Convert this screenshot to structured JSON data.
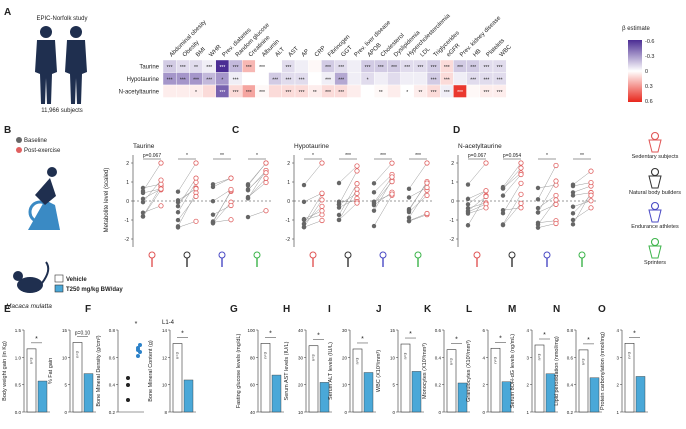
{
  "panel_letters": [
    "A",
    "B",
    "C",
    "D",
    "E",
    "F",
    "G",
    "H",
    "I",
    "J",
    "K",
    "L",
    "M",
    "N",
    "O"
  ],
  "panelA": {
    "study": "EPIC-Norfolk study",
    "subjects": "11,966 subjects",
    "columns": [
      "Abdominal obesity",
      "Obesity",
      "BMI",
      "WHR",
      "Prev. diabetes",
      "Random glucose",
      "Creatinine",
      "Albumin",
      "ALT",
      "AST",
      "AP",
      "CRP",
      "Fibrinogen",
      "GGT",
      "Prev. liver disease",
      "APOB",
      "Cholesterol",
      "Dyslipidemia",
      "Hypercholesterolemia",
      "LDL",
      "Triglycerides",
      "eGFR",
      "Prev. kidney disease",
      "HB",
      "Platelets",
      "WBC"
    ],
    "rows": [
      {
        "label": "Taurine",
        "values": [
          -0.15,
          -0.1,
          -0.1,
          -0.05,
          -0.6,
          -0.2,
          0.2,
          0,
          0,
          -0.1,
          -0.05,
          0.02,
          -0.15,
          -0.1,
          -0.05,
          -0.15,
          -0.15,
          -0.15,
          -0.1,
          -0.1,
          -0.15,
          0.1,
          -0.15,
          -0.15,
          -0.1,
          -0.1
        ],
        "stars": [
          "***",
          "***",
          "**",
          "***",
          "***",
          "***",
          "***",
          "***",
          "",
          "***",
          "",
          "",
          "***",
          "***",
          "",
          "***",
          "***",
          "***",
          "***",
          "***",
          "***",
          "***",
          "***",
          "***",
          "***",
          "***"
        ]
      },
      {
        "label": "Hypotaurine",
        "values": [
          -0.3,
          -0.3,
          -0.3,
          -0.2,
          -0.3,
          -0.05,
          0,
          0,
          -0.15,
          -0.1,
          -0.1,
          0,
          -0.05,
          -0.25,
          -0.05,
          -0.1,
          -0.05,
          -0.1,
          -0.05,
          -0.05,
          -0.15,
          0.1,
          -0.05,
          -0.1,
          -0.1,
          -0.1
        ],
        "stars": [
          "***",
          "***",
          "***",
          "***",
          "*",
          "***",
          "",
          "",
          "***",
          "***",
          "***",
          "",
          "***",
          "***",
          "",
          "*",
          "",
          "",
          "",
          "",
          "***",
          "***",
          "",
          "***",
          "***",
          "***"
        ]
      },
      {
        "label": "N-acetyltaurine",
        "values": [
          0.05,
          0.05,
          0.05,
          0.1,
          -0.45,
          0.1,
          0.25,
          0.02,
          0.1,
          0.1,
          0.1,
          0.05,
          0.1,
          0.1,
          0.05,
          0,
          0.02,
          0.05,
          0,
          0.05,
          0.1,
          -0.05,
          0.55,
          0.02,
          0.05,
          0.05
        ],
        "stars": [
          "",
          "",
          "*",
          "",
          "***",
          "***",
          "***",
          "***",
          "",
          "***",
          "***",
          "**",
          "***",
          "***",
          "",
          "",
          "**",
          "",
          "*",
          "**",
          "***",
          "***",
          "***",
          "",
          "***",
          "***"
        ]
      }
    ],
    "legend_title": "β estimate",
    "legend_ticks": [
      "-0.6",
      "-0.3",
      "0",
      "0.3",
      "0.6"
    ]
  },
  "panelB": {
    "title": "Taurine",
    "ylabel": "Metabolite level (scaled)",
    "legend": [
      "Baseline",
      "Post-exercise"
    ],
    "pvals": [
      "p=0.067",
      "*",
      "**",
      "*"
    ]
  },
  "panelC": {
    "title": "Hypotaurine",
    "pvals": [
      "*",
      "***",
      "***",
      "***"
    ]
  },
  "panelD": {
    "title": "N-acetyltaurine",
    "pvals": [
      "p=0.067",
      "p=0.054",
      "*",
      "**"
    ]
  },
  "y_ticks_BCD": [
    "2",
    "1",
    "0",
    "-1",
    "-2"
  ],
  "athletes": [
    "Sedentary subjects",
    "Natural body builders",
    "Endurance athletes",
    "Sprinters"
  ],
  "monkey": {
    "species": "Macaca mulatta",
    "legend": [
      "Vehicle",
      "T250 mg/kg BW/day"
    ]
  },
  "panelsEO": [
    {
      "id": "E1",
      "ylabel": "Body weight gain (in Kg)",
      "ticks": [
        "1.5",
        "1.0",
        "0.5",
        "0.0"
      ],
      "sig": "*",
      "n": "n=3"
    },
    {
      "id": "E2",
      "ylabel": "% Fat gain",
      "ticks": [
        "15",
        "10",
        "5",
        "0"
      ],
      "sig": "p=0.10",
      "n": "n=3"
    },
    {
      "id": "F1",
      "ylabel": "Bone Mineral Density (g/cm²)",
      "ticks": [
        "0.8",
        "0.6",
        "0.4",
        "0.2"
      ],
      "sig": "*",
      "n": ""
    },
    {
      "id": "F2",
      "ylabel": "Bone Mineral Content (g)",
      "ticks": [
        "14",
        "12",
        "10",
        "8"
      ],
      "sig": "*",
      "n": "n=3",
      "title": "L1-4"
    },
    {
      "id": "G",
      "ylabel": "Fasting glucose levels (mg/dL)",
      "ticks": [
        "100",
        "80",
        "60",
        "40"
      ],
      "sig": "*",
      "n": "n=3"
    },
    {
      "id": "H",
      "ylabel": "Serum AST levels (IU/L)",
      "ticks": [
        "40",
        "30",
        "20",
        "10"
      ],
      "sig": "*",
      "n": "n=3"
    },
    {
      "id": "I",
      "ylabel": "Serum ALT levels (IU/L)",
      "ticks": [
        "30",
        "20",
        "10",
        "0"
      ],
      "sig": "*",
      "n": "n=3"
    },
    {
      "id": "J",
      "ylabel": "WBC (X10³/mm³)",
      "ticks": [
        "15",
        "10",
        "5",
        "0"
      ],
      "sig": "*",
      "n": "n=3"
    },
    {
      "id": "K",
      "ylabel": "Monocytes (X10³/mm³)",
      "ticks": [
        "0.6",
        "0.4",
        "0.2",
        "0"
      ],
      "sig": "*",
      "n": "n=3"
    },
    {
      "id": "L",
      "ylabel": "Granulocytes (X10³/mm³)",
      "ticks": [
        "6",
        "4",
        "2",
        "0"
      ],
      "sig": "*",
      "n": "n=3"
    },
    {
      "id": "M",
      "ylabel": "Serum 8OH-dG levels (ng/mL)",
      "ticks": [
        "4",
        "3",
        "2",
        "1"
      ],
      "sig": "*",
      "n": "n=3"
    },
    {
      "id": "N",
      "ylabel": "Lipid peroxidation (nmol/mg)",
      "ticks": [
        "0.8",
        "0.6",
        "0.4",
        "0.2"
      ],
      "sig": "*",
      "n": "n=3"
    },
    {
      "id": "O",
      "ylabel": "Protein carbonylation (nmol/mg)",
      "ticks": [
        "4",
        "3",
        "2",
        "1"
      ],
      "sig": "*",
      "n": "n=3"
    }
  ],
  "colors": {
    "vehicle": "#ffffff",
    "treated": "#4aa8d8",
    "baseline": "#666666",
    "post": "#e06060",
    "neg": "#4b2d94",
    "pos": "#e8261c",
    "dots": "#2c82c9"
  }
}
